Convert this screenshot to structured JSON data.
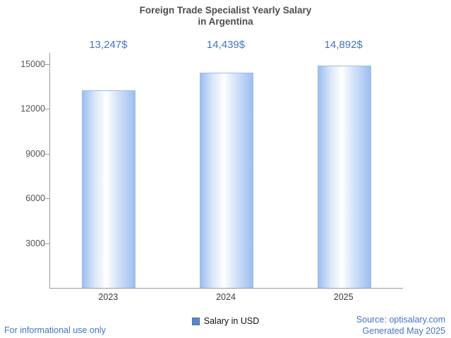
{
  "title": {
    "line1": "Foreign Trade Specialist Yearly Salary",
    "line2": "in Argentina"
  },
  "chart_data": {
    "type": "bar",
    "title": "Foreign Trade Specialist Yearly Salary in Argentina",
    "categories": [
      "2023",
      "2024",
      "2025"
    ],
    "values": [
      13247,
      14439,
      14892
    ],
    "value_labels": [
      "13,247$",
      "14,439$",
      "14,892$"
    ],
    "series_name": "Salary in USD",
    "xlabel": "",
    "ylabel": "",
    "ylim": [
      0,
      15750
    ],
    "yticks": [
      3000,
      6000,
      9000,
      12000,
      15000
    ],
    "grid": false,
    "legend_position": "bottom",
    "bar_color": "#a9c5ef",
    "value_label_color": "#4574c4"
  },
  "legend": {
    "label": "Salary in USD",
    "swatch_color": "#5b87cd"
  },
  "footer": {
    "left": "For informational use only",
    "source": "Source: optisalary.com",
    "generated": "Generated May 2025"
  }
}
